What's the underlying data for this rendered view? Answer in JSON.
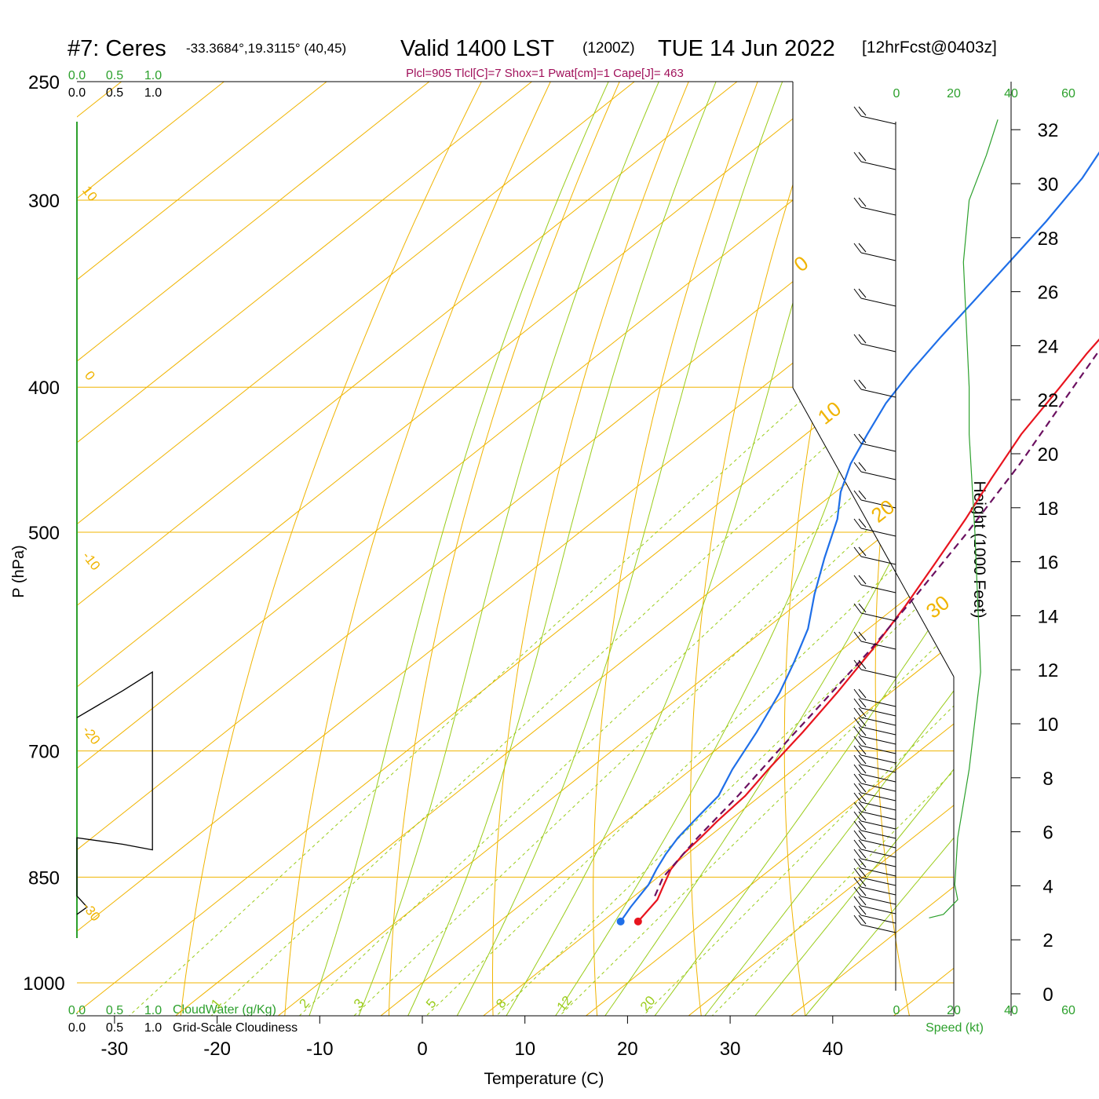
{
  "header": {
    "station": "#7: Ceres",
    "coords": "-33.3684°,19.3115° (40,45)",
    "valid": "Valid 1400 LST",
    "zulu": "(1200Z)",
    "date": "TUE 14 Jun 2022",
    "forecast": "[12hrFcst@0403z]",
    "indices": "Plcl=905 Tlcl[C]=7 Shox=1 Pwat[cm]=1 Cape[J]= 463"
  },
  "colors": {
    "temperature": "#e8141e",
    "dewpoint": "#1f6fe8",
    "parcel": "#6b1060",
    "isotherm": "#f0b400",
    "dry_adiabat": "#9acc1a",
    "mixing_ratio": "#9acc1a",
    "cloud": "#2ca02c",
    "title_accent": "#a0105a"
  },
  "chart_data": {
    "type": "line",
    "title": "Valid 1400 LST (1200Z) TUE 14 Jun 2022",
    "xlabel": "Temperature (C)",
    "ylabel": "P (hPa)",
    "y2label": "Height (1000 Feet)",
    "xlim": [
      -34,
      52
    ],
    "ylim": [
      1000,
      250
    ],
    "yscale": "log",
    "x_ticks": [
      "-30",
      "-20",
      "-10",
      "0",
      "10",
      "20",
      "30",
      "40"
    ],
    "y_ticks": [
      "250",
      "300",
      "400",
      "500",
      "700",
      "850",
      "1000"
    ],
    "height_ticks": [
      "0",
      "2",
      "4",
      "6",
      "8",
      "10",
      "12",
      "14",
      "16",
      "18",
      "20",
      "22",
      "24",
      "26",
      "28",
      "30",
      "32"
    ],
    "isotherm_labels": [
      "10",
      "0",
      "-10",
      "-20",
      "-30",
      "0",
      "10",
      "20",
      "30"
    ],
    "mixing_ratio_labels": [
      "1",
      "2",
      "3",
      "5",
      "8",
      "12",
      "20"
    ],
    "cloud_axis_top_green": [
      "0.0",
      "0.5",
      "1.0"
    ],
    "cloud_axis_top_black": [
      "0.0",
      "0.5",
      "1.0"
    ],
    "cloud_axis_bottom_green": [
      "0.0",
      "0.5",
      "1.0"
    ],
    "cloud_axis_bottom_black": [
      "0.0",
      "0.5",
      "1.0"
    ],
    "cloud_water_label": "CloudWater (g/Kg)",
    "cloudiness_label": "Grid-Scale Cloudiness",
    "speed_ticks": [
      "0",
      "20",
      "40",
      "60"
    ],
    "speed_label": "Speed (kt)",
    "series": [
      {
        "name": "Temperature",
        "points": [
          [
            13.5,
            910
          ],
          [
            12.7,
            880
          ],
          [
            11.5,
            860
          ],
          [
            10.3,
            840
          ],
          [
            9.6,
            820
          ],
          [
            9.3,
            800
          ],
          [
            8.9,
            780
          ],
          [
            8.5,
            750
          ],
          [
            7.5,
            720
          ],
          [
            6.3,
            680
          ],
          [
            4.8,
            640
          ],
          [
            3.0,
            600
          ],
          [
            0.8,
            560
          ],
          [
            -1.5,
            525
          ],
          [
            -4.0,
            490
          ],
          [
            -6.5,
            460
          ],
          [
            -9.0,
            430
          ],
          [
            -11.0,
            400
          ],
          [
            -12.5,
            380
          ],
          [
            -13.8,
            360
          ],
          [
            -14.6,
            340
          ],
          [
            -15.0,
            320
          ],
          [
            -15.2,
            310
          ],
          [
            -15.0,
            300
          ],
          [
            -14.7,
            290
          ],
          [
            -14.3,
            280
          ],
          [
            -13.3,
            270
          ],
          [
            -12.3,
            262
          ]
        ]
      },
      {
        "name": "Dewpoint",
        "points": [
          [
            11.8,
            910
          ],
          [
            11.0,
            890
          ],
          [
            10.0,
            860
          ],
          [
            8.9,
            840
          ],
          [
            7.9,
            820
          ],
          [
            7.1,
            800
          ],
          [
            6.6,
            780
          ],
          [
            5.9,
            750
          ],
          [
            4.0,
            720
          ],
          [
            1.8,
            680
          ],
          [
            -0.8,
            640
          ],
          [
            -3.2,
            610
          ],
          [
            -5.9,
            580
          ],
          [
            -9.5,
            550
          ],
          [
            -13.0,
            520
          ],
          [
            -16.5,
            490
          ],
          [
            -19.5,
            470
          ],
          [
            -22.0,
            450
          ],
          [
            -24.0,
            430
          ],
          [
            -26.0,
            410
          ],
          [
            -27.5,
            390
          ],
          [
            -28.8,
            370
          ],
          [
            -30.0,
            350
          ],
          [
            -31.3,
            330
          ],
          [
            -32.7,
            310
          ],
          [
            -34.5,
            290
          ],
          [
            -36.5,
            275
          ],
          [
            -37.5,
            262
          ]
        ]
      },
      {
        "name": "Parcel",
        "points": [
          [
            12.0,
            875
          ],
          [
            10.5,
            850
          ],
          [
            9.0,
            800
          ],
          [
            7.8,
            750
          ],
          [
            6.2,
            700
          ],
          [
            4.6,
            650
          ],
          [
            2.8,
            600
          ],
          [
            0.5,
            550
          ],
          [
            -2.2,
            500
          ],
          [
            -5.5,
            450
          ],
          [
            -9.7,
            400
          ],
          [
            -11.5,
            380
          ],
          [
            -13.5,
            360
          ]
        ]
      }
    ],
    "cloud_cover_points": [
      [
        0.0,
        665
      ],
      [
        0.45,
        638
      ],
      [
        0.74,
        620
      ],
      [
        0.74,
        815
      ],
      [
        0.45,
        808
      ],
      [
        0.0,
        800
      ],
      [
        0.0,
        875
      ],
      [
        0.1,
        890
      ],
      [
        0.0,
        900
      ]
    ],
    "wind_speed_points": [
      [
        10,
        905
      ],
      [
        15,
        900
      ],
      [
        20,
        880
      ],
      [
        19,
        860
      ],
      [
        20,
        800
      ],
      [
        24,
        720
      ],
      [
        28,
        620
      ],
      [
        26,
        500
      ],
      [
        24,
        430
      ],
      [
        24,
        400
      ],
      [
        22,
        330
      ],
      [
        24,
        300
      ],
      [
        30,
        280
      ],
      [
        34,
        265
      ]
    ]
  }
}
